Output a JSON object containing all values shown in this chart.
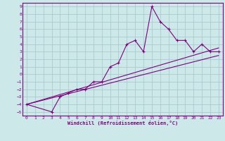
{
  "xlabel": "Windchill (Refroidissement éolien,°C)",
  "bg_color": "#cce8e8",
  "grid_color": "#aacccc",
  "line_color": "#800080",
  "x_ticks": [
    0,
    1,
    2,
    3,
    4,
    5,
    6,
    7,
    8,
    9,
    10,
    11,
    12,
    13,
    14,
    15,
    16,
    17,
    18,
    19,
    20,
    21,
    22,
    23
  ],
  "y_ticks": [
    -5,
    -4,
    -3,
    -2,
    -1,
    0,
    1,
    2,
    3,
    4,
    5,
    6,
    7,
    8,
    9
  ],
  "ylim": [
    -5.5,
    9.5
  ],
  "xlim": [
    -0.5,
    23.5
  ],
  "series1_x": [
    0,
    3,
    4,
    5,
    6,
    7,
    8,
    9,
    10,
    11,
    12,
    13,
    14,
    15,
    16,
    17,
    18,
    19,
    20,
    21,
    22,
    23
  ],
  "series1_y": [
    -4,
    -5,
    -3,
    -2.5,
    -2,
    -2,
    -1,
    -1,
    1,
    1.5,
    4,
    4.5,
    3,
    9,
    7,
    6,
    4.5,
    4.5,
    3,
    4,
    3,
    3
  ],
  "line1_x": [
    0,
    23
  ],
  "line1_y": [
    -4,
    3.5
  ],
  "line2_x": [
    0,
    23
  ],
  "line2_y": [
    -4,
    2.5
  ]
}
